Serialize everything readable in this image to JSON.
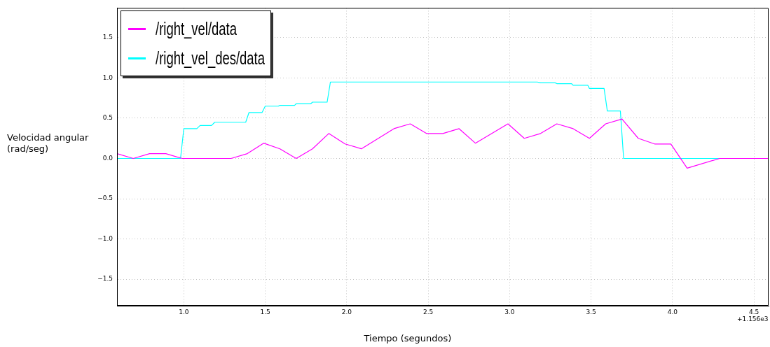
{
  "chart_data": {
    "type": "line",
    "xlabel": "Tiempo (segundos)",
    "ylabel": "Velocidad angular\n(rad/seg)",
    "annotations": [
      "+1.156e3"
    ],
    "xlim": [
      0.59,
      4.59
    ],
    "ylim": [
      -1.83,
      1.87
    ],
    "xticks": [
      {
        "value": 1,
        "label": "1.0"
      },
      1.5,
      {
        "value": 2,
        "label": "2.0"
      },
      2.5,
      {
        "value": 3,
        "label": "3.0"
      },
      3.5,
      {
        "value": 4,
        "label": "4.0"
      },
      4.5
    ],
    "yticks": [
      {
        "value": -1.5,
        "label": "−1.5"
      },
      {
        "value": -1,
        "label": "−1.0"
      },
      {
        "value": -0.5,
        "label": "−0.5"
      },
      {
        "value": 0,
        "label": "0.0"
      },
      0.5,
      {
        "value": 1,
        "label": "1.0"
      },
      1.5
    ],
    "grid": true,
    "legend": "top left",
    "marker": "none",
    "line_style": "solid",
    "series": [
      {
        "name": "/right_vel/data",
        "color": "#ff00ff",
        "x": [
          0.59,
          0.69,
          0.79,
          0.89,
          0.99,
          1.29,
          1.39,
          1.49,
          1.59,
          1.69,
          1.79,
          1.89,
          1.99,
          2.09,
          2.29,
          2.39,
          2.49,
          2.59,
          2.69,
          2.79,
          2.99,
          3.09,
          3.19,
          3.29,
          3.39,
          3.49,
          3.59,
          3.69,
          3.79,
          3.89,
          3.99,
          4.09,
          4.29,
          4.59
        ],
        "values": [
          0.06,
          0,
          0.06,
          0.06,
          0,
          0,
          0.06,
          0.19,
          0.12,
          0,
          0.12,
          0.31,
          0.18,
          0.12,
          0.37,
          0.43,
          0.31,
          0.31,
          0.37,
          0.19,
          0.43,
          0.25,
          0.31,
          0.43,
          0.37,
          0.25,
          0.43,
          0.49,
          0.25,
          0.18,
          0.18,
          -0.12,
          0,
          0
        ]
      },
      {
        "name": "/right_vel_des/data",
        "color": "#00ffff",
        "x": [
          0.59,
          0.98,
          1.0,
          1.08,
          1.1,
          1.17,
          1.19,
          1.38,
          1.4,
          1.48,
          1.5,
          1.58,
          1.59,
          1.68,
          1.69,
          1.78,
          1.79,
          1.88,
          1.9,
          3.17,
          3.19,
          3.28,
          3.29,
          3.38,
          3.39,
          3.48,
          3.49,
          3.58,
          3.6,
          3.68,
          3.7,
          4.59
        ],
        "values": [
          0,
          0,
          0.37,
          0.37,
          0.41,
          0.41,
          0.45,
          0.45,
          0.57,
          0.57,
          0.65,
          0.65,
          0.66,
          0.66,
          0.68,
          0.68,
          0.7,
          0.7,
          0.95,
          0.95,
          0.94,
          0.94,
          0.93,
          0.93,
          0.91,
          0.91,
          0.87,
          0.87,
          0.59,
          0.59,
          0,
          0
        ]
      }
    ]
  }
}
